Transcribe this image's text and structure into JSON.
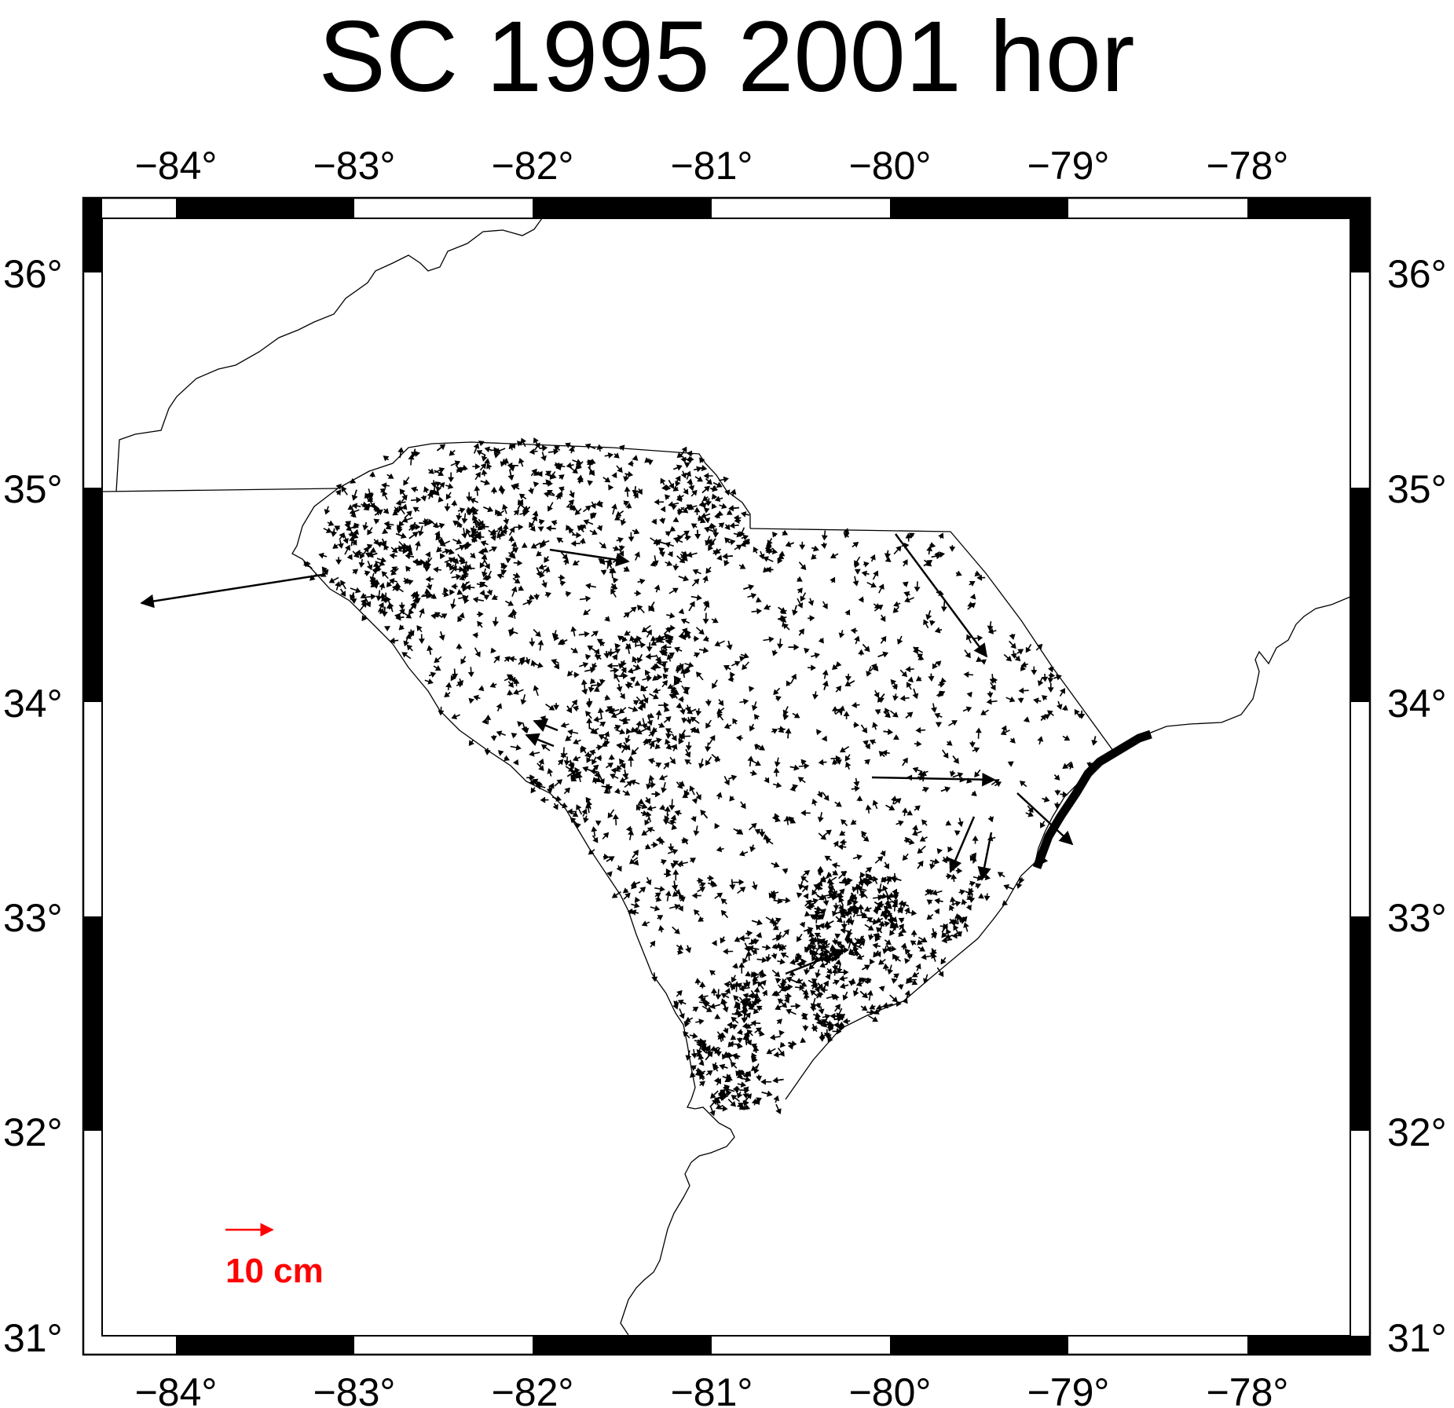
{
  "title": "SC 1995 2001 hor",
  "axes": {
    "x_ticks": [
      "−84°",
      "−83°",
      "−82°",
      "−81°",
      "−80°",
      "−79°",
      "−78°"
    ],
    "y_ticks": [
      "36°",
      "35°",
      "34°",
      "33°",
      "32°",
      "31°"
    ]
  },
  "legend": {
    "label": "10 cm",
    "color": "#ff0000"
  },
  "colors": {
    "frame": "#000000",
    "vectors": "#000000",
    "coastline": "#000000"
  },
  "map": {
    "lon_range": [
      -84.5,
      -77.5
    ],
    "lat_range": [
      30.95,
      36.25
    ],
    "projection": "geographic",
    "notable_vectors": [
      {
        "lon": -83.2,
        "lat": 34.6,
        "dlon": -1.05,
        "dlat": -0.15
      },
      {
        "lon": -80.0,
        "lat": 34.8,
        "dlon": 0.52,
        "dlat": -0.58
      },
      {
        "lon": -80.1,
        "lat": 33.7,
        "dlon": 0.7,
        "dlat": -0.01
      }
    ]
  }
}
